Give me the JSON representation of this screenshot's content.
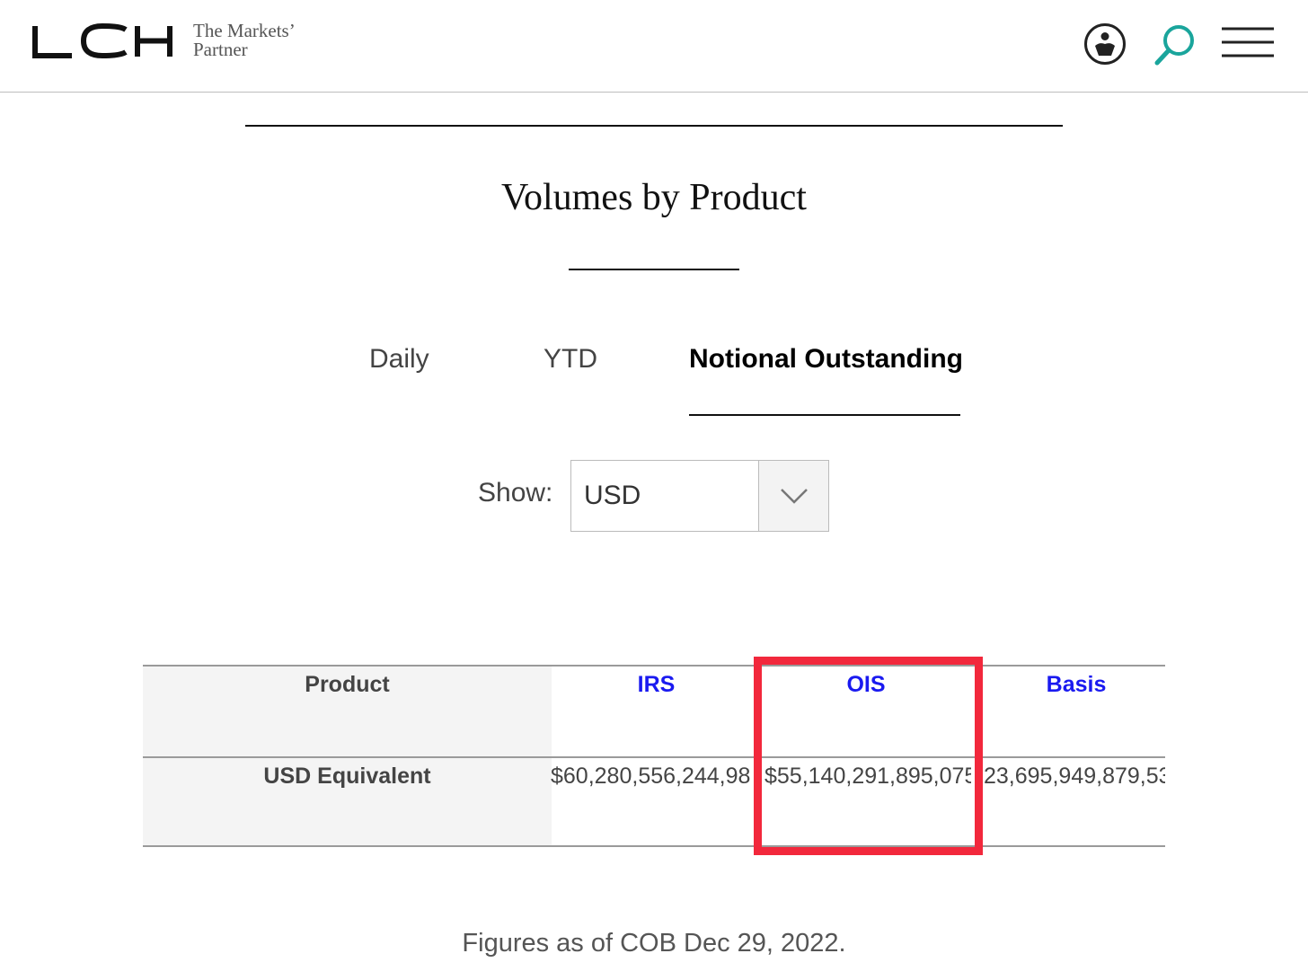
{
  "header": {
    "logo_text": "LCH",
    "tagline_line1": "The Markets’",
    "tagline_line2": "Partner",
    "icons": [
      "user-icon",
      "search-icon",
      "menu-icon"
    ],
    "accent_color": "#1aa59c"
  },
  "main": {
    "title": "Volumes by Product",
    "tabs": [
      {
        "label": "Daily",
        "active": false
      },
      {
        "label": "YTD",
        "active": false
      },
      {
        "label": "Notional Outstanding",
        "active": true
      }
    ],
    "show_label": "Show:",
    "currency_select": {
      "value": "USD"
    }
  },
  "table": {
    "row_header": "Product",
    "columns": [
      "IRS",
      "OIS",
      "Basis"
    ],
    "row_label": "USD Equivalent",
    "values": [
      "$60,280,556,244,98",
      "$55,140,291,895,075",
      "23,695,949,879,53"
    ],
    "link_color": "#1a1af0",
    "highlight_color": "#f2283c",
    "highlighted_column": "OIS"
  },
  "footnote": "Figures as of COB Dec 29, 2022."
}
